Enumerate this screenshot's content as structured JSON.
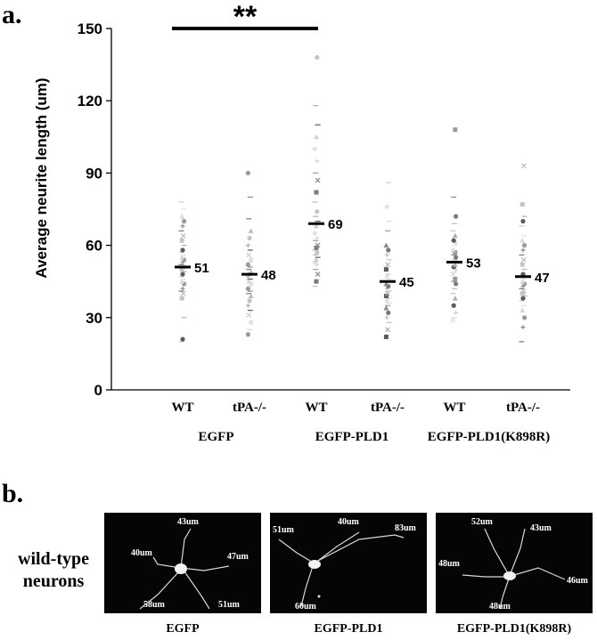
{
  "panel_a_label": "a.",
  "panel_b_label": "b.",
  "chart_data": {
    "type": "scatter",
    "ylabel": "Average neurite length (um)",
    "ylim": [
      0,
      150
    ],
    "yticks": [
      "0",
      "30",
      "60",
      "90",
      "120",
      "150"
    ],
    "categories": [
      "WT",
      "tPA-/-",
      "WT",
      "tPA-/-",
      "WT",
      "tPA-/-"
    ],
    "groups": [
      {
        "name": "EGFP",
        "categories": [
          0,
          1
        ]
      },
      {
        "name": "EGFP-PLD1",
        "categories": [
          2,
          3
        ]
      },
      {
        "name": "EGFP-PLD1(K898R)",
        "categories": [
          4,
          5
        ]
      }
    ],
    "means": [
      51,
      48,
      69,
      45,
      53,
      47
    ],
    "mean_labels": [
      "51",
      "48",
      "69",
      "45",
      "53",
      "47"
    ],
    "points": [
      [
        20,
        21,
        30,
        38,
        40,
        41,
        42,
        44,
        45,
        46,
        47,
        48,
        49,
        50,
        51,
        52,
        53,
        54,
        55,
        56,
        57,
        58,
        60,
        62,
        64,
        66,
        68,
        70,
        72,
        75,
        78
      ],
      [
        23,
        25,
        28,
        31,
        33,
        35,
        37,
        39,
        40,
        41,
        42,
        43,
        44,
        45,
        46,
        47,
        48,
        49,
        50,
        51,
        52,
        53,
        54,
        56,
        58,
        60,
        63,
        66,
        71,
        80,
        90
      ],
      [
        43,
        45,
        48,
        50,
        52,
        53,
        54,
        55,
        56,
        57,
        58,
        59,
        60,
        62,
        63,
        65,
        68,
        70,
        72,
        74,
        78,
        82,
        87,
        90,
        95,
        100,
        105,
        110,
        118,
        138
      ],
      [
        22,
        25,
        28,
        30,
        32,
        34,
        35,
        36,
        37,
        38,
        39,
        40,
        41,
        42,
        43,
        44,
        45,
        46,
        47,
        48,
        50,
        52,
        54,
        56,
        58,
        60,
        66,
        70,
        76,
        86
      ],
      [
        29,
        30,
        32,
        35,
        38,
        40,
        42,
        44,
        45,
        46,
        48,
        49,
        50,
        51,
        52,
        53,
        54,
        55,
        56,
        57,
        58,
        60,
        61,
        62,
        64,
        66,
        69,
        72,
        80,
        108
      ],
      [
        20,
        26,
        30,
        33,
        35,
        37,
        38,
        39,
        40,
        41,
        42,
        43,
        44,
        45,
        46,
        47,
        48,
        50,
        52,
        54,
        56,
        58,
        60,
        62,
        64,
        68,
        70,
        72,
        77,
        93
      ]
    ],
    "significance": {
      "label": "**",
      "from_category": 0,
      "to_category": 2,
      "y": 150
    }
  },
  "panel_b": {
    "row_label_line1": "wild-type",
    "row_label_line2": "neurons",
    "images": [
      {
        "caption": "EGFP",
        "annotations": [
          "43um",
          "40um",
          "47um",
          "58um",
          "51um"
        ]
      },
      {
        "caption": "EGFP-PLD1",
        "annotations": [
          "51um",
          "40um",
          "83um",
          "60um"
        ]
      },
      {
        "caption": "EGFP-PLD1(K898R)",
        "annotations": [
          "52um",
          "43um",
          "48um",
          "46um",
          "48um"
        ]
      }
    ]
  }
}
